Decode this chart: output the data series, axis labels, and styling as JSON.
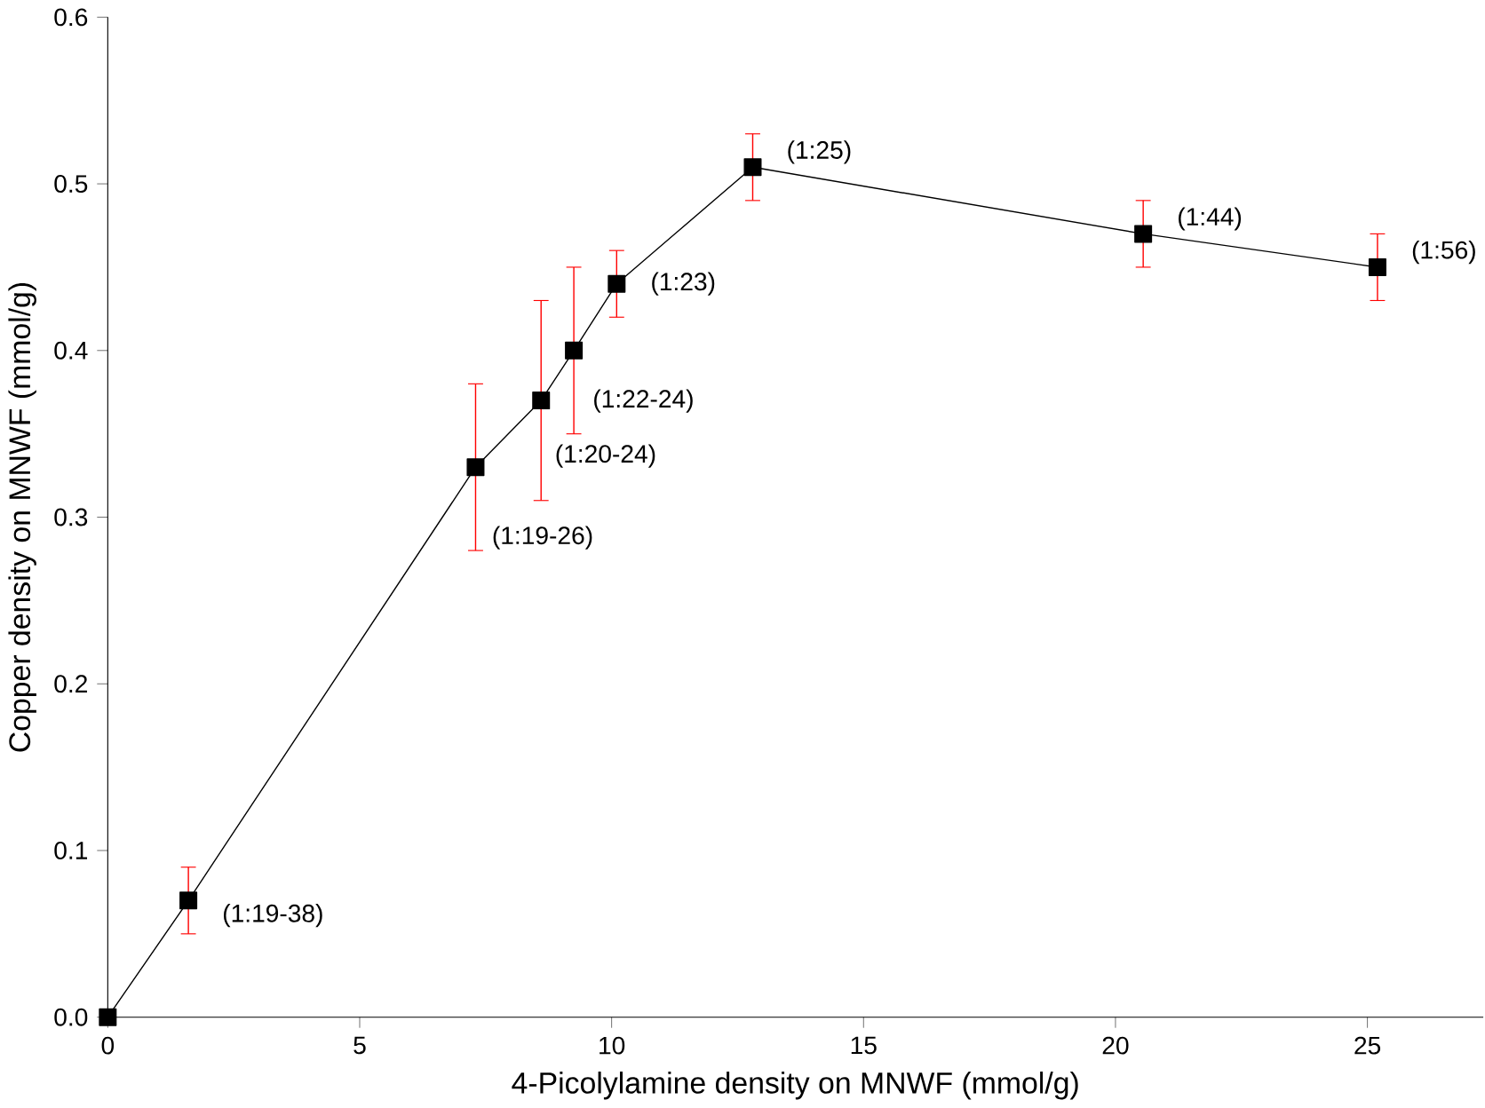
{
  "chart_data": {
    "type": "line",
    "xlabel": "4-Picolylamine density on MNWF (mmol/g)",
    "ylabel": "Copper density on MNWF (mmol/g)",
    "x": [
      0,
      1.6,
      7.3,
      8.6,
      9.25,
      10.1,
      12.8,
      20.55,
      25.2
    ],
    "series": [
      {
        "color": "#000000",
        "values": [
          0,
          0.07,
          0.33,
          0.37,
          0.4,
          0.44,
          0.51,
          0.47,
          0.45
        ],
        "errors": [
          null,
          0.02,
          0.05,
          0.06,
          0.05,
          0.02,
          0.02,
          0.02,
          0.02
        ]
      }
    ],
    "marker": "square",
    "line_style": "solid",
    "xlim": [
      0,
      27.3
    ],
    "ylim": [
      0,
      0.6
    ],
    "xticks": [
      0,
      5,
      10,
      15,
      20,
      25
    ],
    "yticks": [
      {
        "value": 0,
        "label": "0.0"
      },
      {
        "value": 0.1,
        "label": "0.1"
      },
      {
        "value": 0.2,
        "label": "0.2"
      },
      {
        "value": 0.3,
        "label": "0.3"
      },
      {
        "value": 0.4,
        "label": "0.4"
      },
      {
        "value": 0.5,
        "label": "0.5"
      },
      {
        "value": 0.6,
        "label": "0.6"
      }
    ],
    "annotations": [
      {
        "text": "(1:19-38)",
        "x": 1.6,
        "y": 0.07
      },
      {
        "text": "(1:19-26)",
        "x": 7.3,
        "y": 0.33
      },
      {
        "text": "(1:20-24)",
        "x": 8.6,
        "y": 0.37
      },
      {
        "text": "(1:22-24)",
        "x": 9.25,
        "y": 0.4
      },
      {
        "text": "(1:23)",
        "x": 10.1,
        "y": 0.44
      },
      {
        "text": "(1:25)",
        "x": 12.8,
        "y": 0.51
      },
      {
        "text": "(1:44)",
        "x": 20.55,
        "y": 0.47
      },
      {
        "text": "(1:56)",
        "x": 25.2,
        "y": 0.45
      }
    ]
  }
}
